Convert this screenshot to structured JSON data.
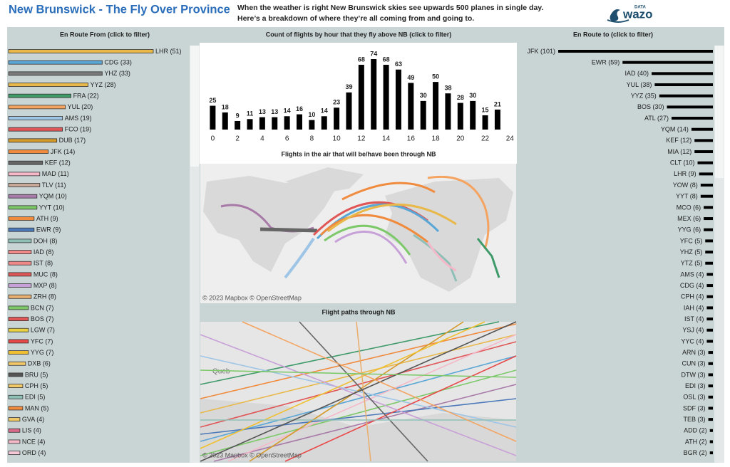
{
  "header": {
    "title": "New Brunswick - The Fly Over Province",
    "subtitle": [
      "When the weather is right New Brunswick skies see upwards 500 planes in single day.",
      "Here’s a breakdown of where they’re all coming from and going to."
    ],
    "logo_small": "DATA",
    "logo": "wazo"
  },
  "chart_data": [
    {
      "type": "bar",
      "orientation": "horizontal",
      "title": "En Route From (click to filter)",
      "categories": [
        "LHR (51)",
        "CDG (33)",
        "YHZ (33)",
        "YYZ (28)",
        "FRA (22)",
        "YUL (20)",
        "AMS (19)",
        "FCO (19)",
        "DUB (17)",
        "JFK (14)",
        "KEF (12)",
        "MAD (11)",
        "TLV (11)",
        "YQM (10)",
        "YYT (10)",
        "ATH (9)",
        "EWR (9)",
        "DOH (8)",
        "IAD (8)",
        "IST (8)",
        "MUC (8)",
        "MXP (8)",
        "ZRH (8)",
        "BCN (7)",
        "BOS (7)",
        "LGW (7)",
        "YFC (7)",
        "YYG (7)",
        "DXB (6)",
        "BRU (5)",
        "CPH (5)",
        "EDI (5)",
        "MAN (5)",
        "GVA (4)",
        "LIS (4)",
        "NCE (4)",
        "ORD (4)"
      ],
      "values": [
        51,
        33,
        33,
        28,
        22,
        20,
        19,
        19,
        17,
        14,
        12,
        11,
        11,
        10,
        10,
        9,
        9,
        8,
        8,
        8,
        8,
        8,
        8,
        7,
        7,
        7,
        7,
        7,
        6,
        5,
        5,
        5,
        5,
        4,
        4,
        4,
        4
      ],
      "colors": [
        "#e8b84a",
        "#5aa6d6",
        "#7a7a7a",
        "#e8b84a",
        "#3f9a6a",
        "#f4a460",
        "#9ec5e6",
        "#e05555",
        "#d49a2a",
        "#f08a3c",
        "#666666",
        "#f5b8c8",
        "#c8a898",
        "#a87aa8",
        "#7dc96a",
        "#f08a3c",
        "#4a78b8",
        "#8fc0b8",
        "#f08a8a",
        "#f08a8a",
        "#e05555",
        "#c8a0d8",
        "#e8b070",
        "#7dc96a",
        "#e05555",
        "#e8d040",
        "#e84848",
        "#f0c030",
        "#f0c868",
        "#555555",
        "#f0c868",
        "#8fc0b8",
        "#f08a3c",
        "#f0c868",
        "#d86a8a",
        "#f5b8c8",
        "#f5c8d8"
      ]
    },
    {
      "type": "bar",
      "orientation": "vertical",
      "title": "Count of flights by hour that they fly above NB (click to filter)",
      "x": [
        0,
        1,
        2,
        3,
        4,
        5,
        6,
        7,
        8,
        9,
        10,
        11,
        12,
        13,
        14,
        15,
        16,
        17,
        18,
        19,
        20,
        21,
        22,
        23
      ],
      "values": [
        25,
        18,
        9,
        11,
        13,
        13,
        14,
        16,
        10,
        14,
        23,
        39,
        68,
        74,
        68,
        63,
        49,
        30,
        50,
        38,
        28,
        30,
        15,
        21
      ],
      "xticks": [
        0,
        2,
        4,
        6,
        8,
        10,
        12,
        14,
        16,
        18,
        20,
        22,
        24
      ],
      "xlim": [
        -1,
        24.5
      ],
      "color": "#000000"
    },
    {
      "type": "bar",
      "orientation": "horizontal-right",
      "title": "En Route to (click to filter)",
      "categories": [
        "JFK (101)",
        "EWR (59)",
        "IAD (40)",
        "YUL (38)",
        "YYZ (35)",
        "BOS (30)",
        "ATL (27)",
        "YQM (14)",
        "KEF (12)",
        "MIA (12)",
        "CLT (10)",
        "LHR (9)",
        "YOW (8)",
        "YYT (8)",
        "MCO (6)",
        "MEX (6)",
        "YYG (6)",
        "YFC (5)",
        "YHZ (5)",
        "YTZ (5)",
        "AMS (4)",
        "CDG (4)",
        "CPH (4)",
        "IAH (4)",
        "IST (4)",
        "YSJ (4)",
        "YYC (4)",
        "ARN (3)",
        "CUN (3)",
        "DTW (3)",
        "EDI (3)",
        "OSL (3)",
        "SDF (3)",
        "TEB (3)",
        "ADD (2)",
        "ATH (2)",
        "BGR (2)"
      ],
      "values": [
        101,
        59,
        40,
        38,
        35,
        30,
        27,
        14,
        12,
        12,
        10,
        9,
        8,
        8,
        6,
        6,
        6,
        5,
        5,
        5,
        4,
        4,
        4,
        4,
        4,
        4,
        4,
        3,
        3,
        3,
        3,
        3,
        3,
        3,
        2,
        2,
        2
      ],
      "color": "#000000"
    }
  ],
  "maps": [
    {
      "title": "Flights in the air that will be/have been through NB",
      "attribution": "© 2023 Mapbox © OpenStreetMap"
    },
    {
      "title": "Flight paths through NB",
      "attribution": "© 2023 Mapbox © OpenStreetMap",
      "place_label": "Queb"
    }
  ]
}
